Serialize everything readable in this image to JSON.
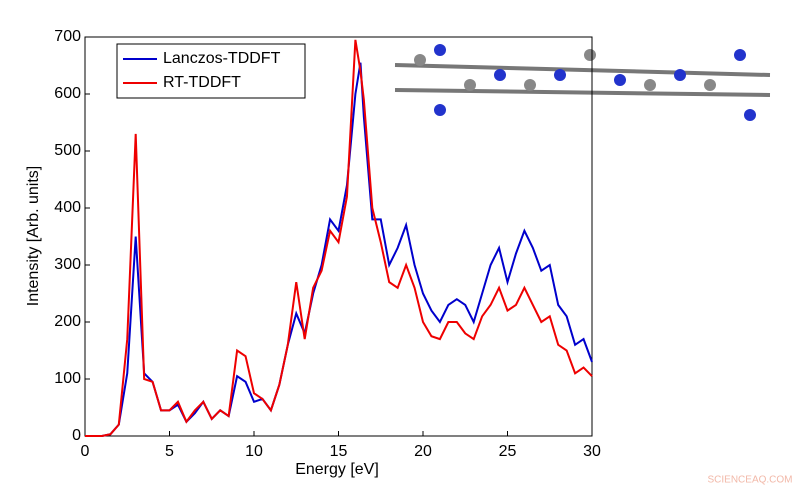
{
  "chart_data": {
    "type": "line",
    "x_label": "Energy [eV]",
    "y_label": "Intensity [Arb. units]",
    "x": [
      0,
      0.5,
      1,
      1.5,
      2,
      2.5,
      3,
      3.5,
      4,
      4.5,
      5,
      5.5,
      6,
      6.5,
      7,
      7.5,
      8,
      8.5,
      9,
      9.5,
      10,
      10.5,
      11,
      11.5,
      12,
      12.5,
      13,
      13.5,
      14,
      14.5,
      15,
      15.5,
      16,
      16.3,
      16.5,
      17,
      17.5,
      18,
      18.5,
      19,
      19.5,
      20,
      20.5,
      21,
      21.5,
      22,
      22.5,
      23,
      23.5,
      24,
      24.5,
      25,
      25.5,
      26,
      26.5,
      27,
      27.5,
      28,
      28.5,
      29,
      29.5,
      30
    ],
    "series": [
      {
        "name": "Lanczos-TDDFT",
        "color": "#0000cc",
        "values": [
          0,
          0,
          0,
          3,
          20,
          110,
          350,
          110,
          95,
          45,
          45,
          55,
          25,
          40,
          60,
          30,
          45,
          35,
          105,
          95,
          60,
          65,
          45,
          90,
          160,
          215,
          180,
          250,
          300,
          380,
          360,
          440,
          600,
          655,
          560,
          380,
          380,
          300,
          330,
          370,
          300,
          250,
          220,
          200,
          230,
          240,
          230,
          200,
          250,
          300,
          330,
          270,
          320,
          360,
          330,
          290,
          300,
          230,
          210,
          160,
          170,
          130
        ]
      },
      {
        "name": "RT-TDDFT",
        "color": "#ee0000",
        "values": [
          0,
          0,
          0,
          3,
          20,
          170,
          530,
          100,
          95,
          45,
          45,
          60,
          25,
          45,
          60,
          30,
          45,
          35,
          150,
          140,
          75,
          65,
          45,
          90,
          160,
          270,
          170,
          260,
          290,
          360,
          340,
          420,
          695,
          640,
          590,
          400,
          340,
          270,
          260,
          300,
          260,
          200,
          175,
          170,
          200,
          200,
          180,
          170,
          210,
          230,
          260,
          220,
          230,
          260,
          230,
          200,
          210,
          160,
          150,
          110,
          120,
          105
        ]
      }
    ],
    "xlim": [
      0,
      30
    ],
    "xticks": [
      0,
      5,
      10,
      15,
      20,
      25,
      30
    ],
    "ylim": [
      0,
      700
    ],
    "yticks": [
      0,
      100,
      200,
      300,
      400,
      500,
      600,
      700
    ],
    "legend": "upper left",
    "watermark": "SCIENCEAQ.COM"
  }
}
